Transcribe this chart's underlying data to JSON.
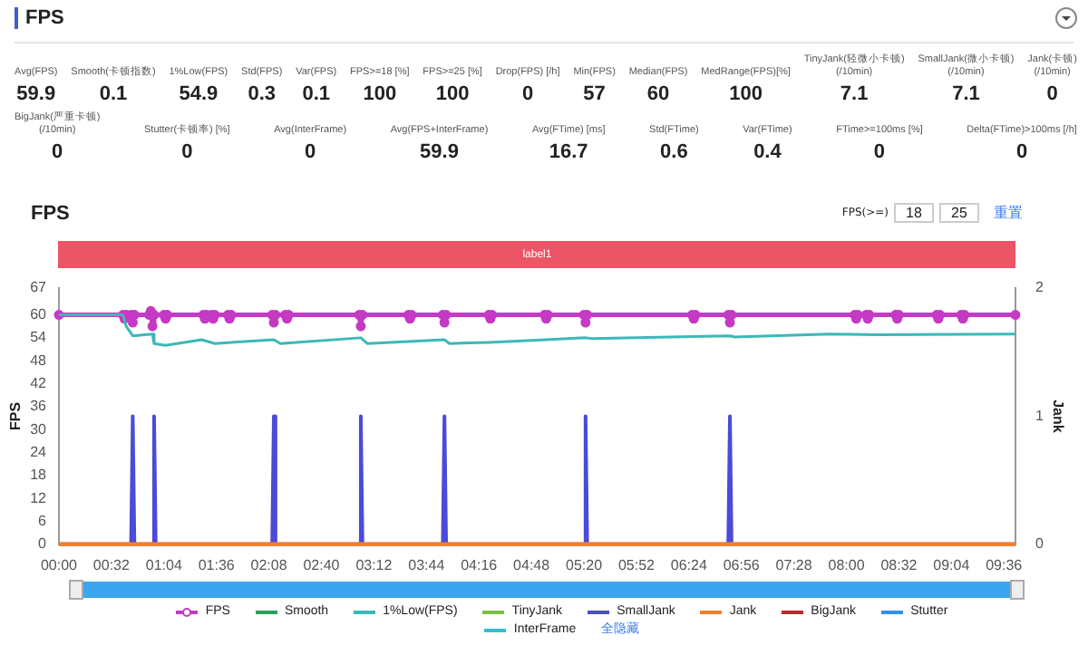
{
  "chart_data": {
    "type": "line",
    "title": "FPS",
    "subtitle": "FPS",
    "ylabel": "FPS",
    "y2label": "Jank",
    "annotations": [
      "Avg(FPS)\n59.9",
      "Smooth(卡顿指数)\n0.1",
      "1%Low(FPS)\n54.9",
      "Std(FPS)\n0.3",
      "Var(FPS)\n0.1",
      "FPS>=18 [%]\n100",
      "FPS>=25 [%]\n100",
      "Drop(FPS) [/h]\n0",
      "Min(FPS)\n57",
      "Median(FPS)\n60",
      "MedRange(FPS)[%]\n100",
      "TinyJank(轻微小卡顿)\n(/10min)\n7.1",
      "SmallJank(微小卡顿)\n(/10min)\n7.1",
      "Jank(卡顿)\n(/10min)\n0",
      "BigJank(严重卡顿)\n(/10min)\n0",
      "Stutter(卡顿率) [%]\n0",
      "Avg(InterFrame)\n0",
      "Avg(FPS+InterFrame)\n59.9",
      "Avg(FTime) [ms]\n16.7",
      "Std(FTime)\n0.6",
      "Var(FTime)\n0.4",
      "FTime>=100ms [%]\n0",
      "Delta(FTime)>100ms [/h]\n0",
      "label1",
      "FPS(>=)",
      "18",
      "25",
      "重置",
      "全隐藏"
    ],
    "xlim": [
      0,
      583
    ],
    "xticks": [
      {
        "value": 0,
        "label": "00:00"
      },
      {
        "value": 32,
        "label": "00:32"
      },
      {
        "value": 64,
        "label": "01:04"
      },
      {
        "value": 96,
        "label": "01:36"
      },
      {
        "value": 128,
        "label": "02:08"
      },
      {
        "value": 160,
        "label": "02:40"
      },
      {
        "value": 192,
        "label": "03:12"
      },
      {
        "value": 224,
        "label": "03:44"
      },
      {
        "value": 256,
        "label": "04:16"
      },
      {
        "value": 288,
        "label": "04:48"
      },
      {
        "value": 320,
        "label": "05:20"
      },
      {
        "value": 352,
        "label": "05:52"
      },
      {
        "value": 384,
        "label": "06:24"
      },
      {
        "value": 416,
        "label": "06:56"
      },
      {
        "value": 448,
        "label": "07:28"
      },
      {
        "value": 480,
        "label": "08:00"
      },
      {
        "value": 512,
        "label": "08:32"
      },
      {
        "value": 544,
        "label": "09:04"
      },
      {
        "value": 576,
        "label": "09:36"
      }
    ],
    "ylim": [
      0,
      67
    ],
    "yticks": [
      0,
      6,
      12,
      18,
      24,
      30,
      36,
      42,
      48,
      54,
      60,
      67
    ],
    "y2lim": [
      0,
      2
    ],
    "y2ticks": [
      0,
      1,
      2
    ],
    "legend": "bottom",
    "series": [
      {
        "name": "FPS",
        "color": "#c43ac4",
        "marker": "circle",
        "x": [
          0,
          39,
          40,
          41,
          44,
          45,
          46,
          55,
          56,
          57,
          58,
          64,
          65,
          66,
          88,
          89,
          90,
          93,
          94,
          95,
          103,
          104,
          105,
          130,
          131,
          132,
          138,
          139,
          140,
          183,
          184,
          185,
          213,
          214,
          215,
          234,
          235,
          236,
          262,
          263,
          264,
          296,
          297,
          298,
          320,
          321,
          322,
          386,
          387,
          388,
          408,
          409,
          410,
          485,
          486,
          487,
          492,
          493,
          494,
          510,
          511,
          512,
          535,
          536,
          537,
          550,
          551,
          552,
          583
        ],
        "values": [
          60,
          60,
          59,
          60,
          60,
          58,
          60,
          60,
          61,
          57,
          60,
          60,
          59,
          60,
          60,
          59,
          60,
          60,
          59,
          60,
          60,
          59,
          60,
          60,
          58,
          60,
          60,
          59,
          60,
          60,
          57,
          60,
          60,
          59,
          60,
          60,
          58,
          60,
          60,
          59,
          60,
          60,
          59,
          60,
          60,
          58,
          60,
          60,
          59,
          60,
          60,
          58,
          60,
          60,
          59,
          60,
          60,
          59,
          60,
          60,
          59,
          60,
          60,
          59,
          60,
          60,
          59,
          60,
          60
        ]
      },
      {
        "name": "Smooth",
        "color": "#2ca05a"
      },
      {
        "name": "1%Low(FPS)",
        "color": "#3cb8b8",
        "x": [
          0,
          39,
          41,
          45,
          57,
          58,
          65,
          87,
          95,
          131,
          135,
          184,
          188,
          235,
          238,
          262,
          297,
          321,
          325,
          409,
          412,
          470,
          500,
          583
        ],
        "values": [
          60,
          60,
          57,
          54.5,
          55,
          52.5,
          52,
          53.5,
          52.5,
          53.5,
          52.5,
          54,
          52.5,
          53.5,
          52.5,
          52.8,
          53.5,
          54,
          53.8,
          54.5,
          54.2,
          55,
          54.8,
          55
        ]
      },
      {
        "name": "TinyJank",
        "color": "#7ac143",
        "axis": "y2"
      },
      {
        "name": "SmallJank",
        "color": "#4b4bd8",
        "axis": "y2",
        "x": [
          0,
          44,
          45,
          46,
          57,
          58,
          59,
          130,
          131,
          132,
          183,
          184,
          185,
          234,
          235,
          236,
          320,
          321,
          322,
          408,
          409,
          410,
          583
        ],
        "values": [
          0,
          0,
          1,
          0,
          0,
          1,
          0,
          0,
          1,
          0,
          0,
          1,
          0,
          0,
          1,
          0,
          0,
          1,
          0,
          0,
          1,
          0,
          0
        ]
      },
      {
        "name": "Jank",
        "color": "#f08030",
        "axis": "y2",
        "x": [
          0,
          583
        ],
        "values": [
          0,
          0
        ]
      },
      {
        "name": "BigJank",
        "color": "#d02030",
        "axis": "y2"
      },
      {
        "name": "Stutter",
        "color": "#3090f0"
      },
      {
        "name": "InterFrame",
        "color": "#30c0d0"
      }
    ]
  }
}
